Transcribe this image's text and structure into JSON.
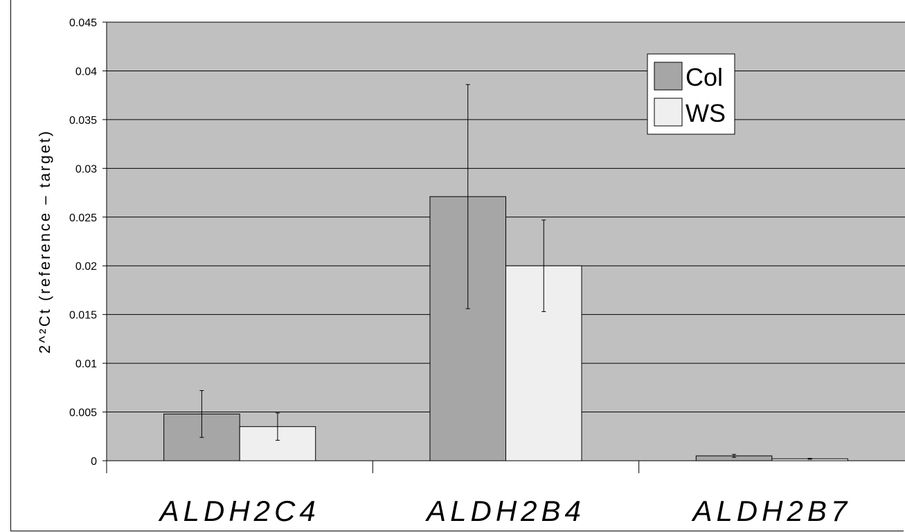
{
  "chart_data": {
    "type": "bar",
    "title": "",
    "xlabel": "",
    "ylabel": "2^²Ct (reference – target)",
    "categories": [
      "ALDH2C4",
      "ALDH2B4",
      "ALDH2B7"
    ],
    "series": [
      {
        "name": "Col",
        "values": [
          0.0048,
          0.0271,
          0.0005
        ],
        "errors": [
          0.0024,
          0.0115,
          0.00015
        ],
        "color": "#a6a6a6"
      },
      {
        "name": "WS",
        "values": [
          0.0035,
          0.02,
          0.0002
        ],
        "errors": [
          0.0014,
          0.0047,
          5e-05
        ],
        "color": "#efefef"
      }
    ],
    "ylim": [
      0,
      0.045
    ],
    "yticks": [
      "0",
      "0.005",
      "0.01",
      "0.015",
      "0.02",
      "0.025",
      "0.03",
      "0.035",
      "0.04",
      "0.045"
    ],
    "ytick_values": [
      0,
      0.005,
      0.01,
      0.015,
      0.02,
      0.025,
      0.03,
      0.035,
      0.04,
      0.045
    ],
    "grid": true,
    "legend_position": "top-right",
    "plot_background": "#c0c0c0"
  }
}
